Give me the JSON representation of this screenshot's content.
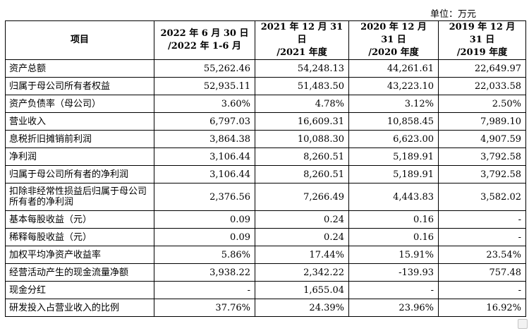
{
  "unit_label": "单位：万元",
  "header": {
    "item": "项目",
    "col1_line1": "2022 年 6 月 30 日",
    "col1_line2": "/2022 年 1-6 月",
    "col2_line1": "2021 年 12 月 31 日",
    "col2_line2": "/2021 年度",
    "col3_line1": "2020 年 12 月 31 日",
    "col3_line2": "/2020 年度",
    "col4_line1": "2019 年 12 月 31 日",
    "col4_line2": "/2019 年度"
  },
  "rows": [
    {
      "label": "资产总额",
      "v": [
        "55,262.46",
        "54,248.13",
        "44,261.61",
        "22,649.97"
      ]
    },
    {
      "label": "归属于母公司所有者权益",
      "v": [
        "52,935.11",
        "51,483.50",
        "43,223.10",
        "22,033.58"
      ]
    },
    {
      "label": "资产负债率（母公司）",
      "v": [
        "3.60%",
        "4.78%",
        "3.12%",
        "2.50%"
      ]
    },
    {
      "label": "营业收入",
      "v": [
        "6,797.03",
        "16,609.31",
        "10,858.45",
        "7,989.10"
      ]
    },
    {
      "label": "息税折旧摊销前利润",
      "v": [
        "3,864.38",
        "10,088.30",
        "6,623.00",
        "4,907.59"
      ]
    },
    {
      "label": "净利润",
      "v": [
        "3,106.44",
        "8,260.51",
        "5,189.91",
        "3,792.58"
      ]
    },
    {
      "label": "归属于母公司所有者的净利润",
      "v": [
        "3,106.44",
        "8,260.51",
        "5,189.91",
        "3,792.58"
      ]
    },
    {
      "label": "扣除非经常性损益后归属于母公司所有者的净利润",
      "v": [
        "2,376.56",
        "7,266.49",
        "4,443.83",
        "3,582.02"
      ]
    },
    {
      "label": "基本每股收益（元）",
      "v": [
        "0.09",
        "0.24",
        "0.16",
        "-"
      ]
    },
    {
      "label": "稀释每股收益（元）",
      "v": [
        "0.09",
        "0.24",
        "0.16",
        "-"
      ]
    },
    {
      "label": "加权平均净资产收益率",
      "v": [
        "5.86%",
        "17.44%",
        "15.91%",
        "23.54%"
      ]
    },
    {
      "label": "经营活动产生的现金流量净额",
      "v": [
        "3,938.22",
        "2,342.22",
        "-139.93",
        "757.48"
      ]
    },
    {
      "label": "现金分红",
      "v": [
        "-",
        "1,655.04",
        "-",
        "-"
      ]
    },
    {
      "label": "研发投入占营业收入的比例",
      "v": [
        "37.76%",
        "24.39%",
        "23.96%",
        "16.92%"
      ]
    }
  ],
  "watermark_icon": "gelonghui-watermark-icon"
}
